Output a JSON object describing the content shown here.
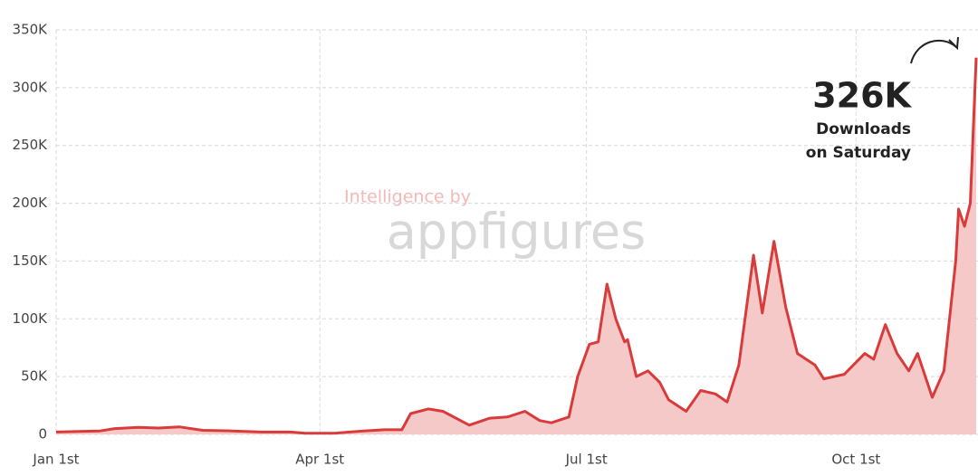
{
  "chart_data": {
    "type": "area",
    "watermark": [
      "Intelligence by",
      "appfigures"
    ],
    "annotation": {
      "value_label": "326K",
      "lines": [
        "Downloads",
        "on Saturday"
      ]
    },
    "x": [
      0,
      8,
      15,
      20,
      28,
      35,
      42,
      50,
      60,
      70,
      80,
      85,
      95,
      105,
      112,
      118,
      121,
      127,
      132,
      141,
      148,
      154,
      160,
      165,
      169,
      175,
      178,
      182,
      185,
      188,
      191,
      194,
      195,
      198,
      202,
      206,
      209,
      215,
      220,
      225,
      229,
      233,
      238,
      241,
      245,
      249,
      253,
      259,
      262,
      269,
      276,
      279,
      283,
      287,
      291,
      294,
      299,
      303,
      307,
      308,
      310,
      312,
      314
    ],
    "series": [
      {
        "name": "Downloads",
        "color": "#d93b3b",
        "fill": "#f6c9c9",
        "values": [
          2000,
          2500,
          3000,
          5000,
          6000,
          5500,
          6500,
          3500,
          3000,
          2000,
          2000,
          1000,
          1000,
          3000,
          4000,
          4000,
          18000,
          22000,
          20000,
          8000,
          14000,
          15000,
          20000,
          12000,
          10000,
          15000,
          50000,
          78000,
          80000,
          130000,
          100000,
          80000,
          82000,
          50000,
          55000,
          45000,
          30000,
          20000,
          38000,
          35000,
          28000,
          60000,
          155000,
          105000,
          167000,
          110000,
          70000,
          60000,
          48000,
          52000,
          70000,
          65000,
          95000,
          70000,
          55000,
          70000,
          32000,
          55000,
          150000,
          195000,
          180000,
          200000,
          326000
        ]
      }
    ],
    "xlim": [
      0,
      314
    ],
    "xticks": [
      {
        "value": 0,
        "label": "Jan 1st"
      },
      {
        "value": 90,
        "label": "Apr 1st"
      },
      {
        "value": 181,
        "label": "Jul 1st"
      },
      {
        "value": 273,
        "label": "Oct 1st"
      }
    ],
    "ylim": [
      0,
      350000
    ],
    "yticks": [
      {
        "value": 0,
        "label": "0"
      },
      {
        "value": 50000,
        "label": "50K"
      },
      {
        "value": 100000,
        "label": "100K"
      },
      {
        "value": 150000,
        "label": "150K"
      },
      {
        "value": 200000,
        "label": "200K"
      },
      {
        "value": 250000,
        "label": "250K"
      },
      {
        "value": 300000,
        "label": "300K"
      },
      {
        "value": 350000,
        "label": "350K"
      }
    ],
    "grid": true
  }
}
